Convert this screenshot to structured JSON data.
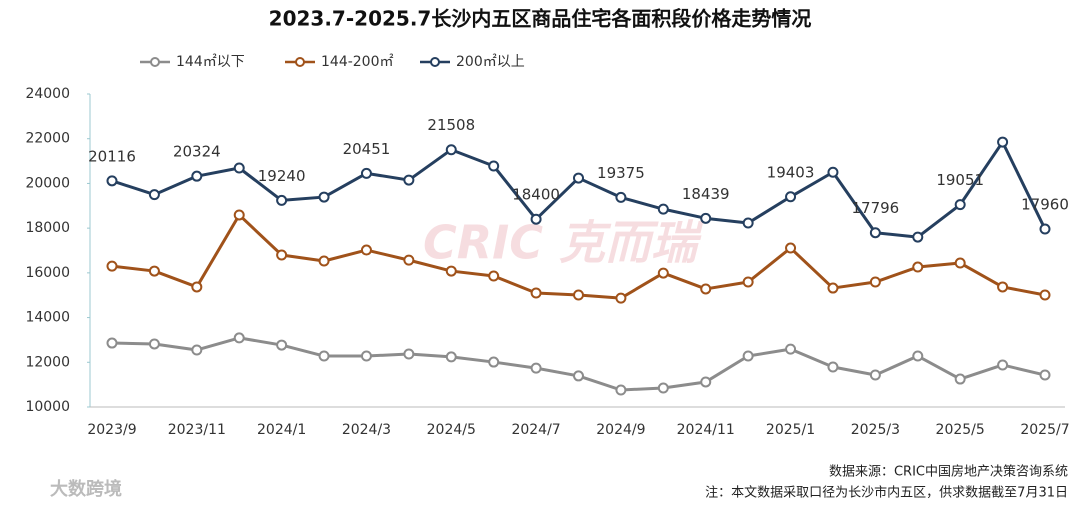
{
  "chart_data": {
    "type": "line",
    "title": "2023.7-2025.7长沙内五区商品住宅各面积段价格走势情况",
    "categories": [
      "2023/9",
      null,
      "2023/11",
      null,
      "2024/1",
      null,
      "2024/3",
      null,
      "2024/5",
      null,
      "2024/7",
      null,
      "2024/9",
      null,
      "2024/11",
      null,
      "2025/1",
      null,
      "2025/3",
      null,
      "2025/5",
      null,
      "2025/7"
    ],
    "series": [
      {
        "name": "144㎡以下",
        "color": "#8c8c8c",
        "values": [
          12860,
          12820,
          12550,
          13090,
          12770,
          12280,
          12280,
          12370,
          12240,
          12010,
          11740,
          11390,
          10760,
          10850,
          11120,
          12280,
          12590,
          11790,
          11430,
          12280,
          11250,
          11880,
          11430
        ]
      },
      {
        "name": "144-200㎡",
        "color": "#a0521a",
        "values": [
          16300,
          16080,
          15370,
          18590,
          16800,
          16530,
          17020,
          16570,
          16080,
          15860,
          15100,
          15010,
          14870,
          15990,
          15280,
          15590,
          17110,
          15320,
          15590,
          16260,
          16440,
          15370,
          15010
        ]
      },
      {
        "name": "200㎡以上",
        "color": "#253f5f",
        "values": [
          20116,
          19500,
          20324,
          20690,
          19240,
          19390,
          20451,
          20150,
          21508,
          20780,
          18400,
          20240,
          19375,
          18850,
          18439,
          18230,
          19403,
          20500,
          17796,
          17600,
          19051,
          21850,
          17960
        ],
        "value_labels": [
          "20116",
          null,
          "20324",
          null,
          "19240",
          null,
          "20451",
          null,
          "21508",
          null,
          "18400",
          null,
          "19375",
          null,
          "18439",
          null,
          "19403",
          null,
          "17796",
          null,
          "19051",
          null,
          "17960"
        ]
      }
    ],
    "ylim": [
      10000,
      24000
    ],
    "yticks": [
      10000,
      12000,
      14000,
      16000,
      18000,
      20000,
      22000,
      24000
    ],
    "legend": "top",
    "source": "数据来源：CRIC中国房地产决策咨询系统",
    "note": "注：本文数据采取口径为长沙市内五区，供求数据截至7月31日",
    "watermark": "CRIC 克而瑞",
    "logo": "大数跨境"
  }
}
